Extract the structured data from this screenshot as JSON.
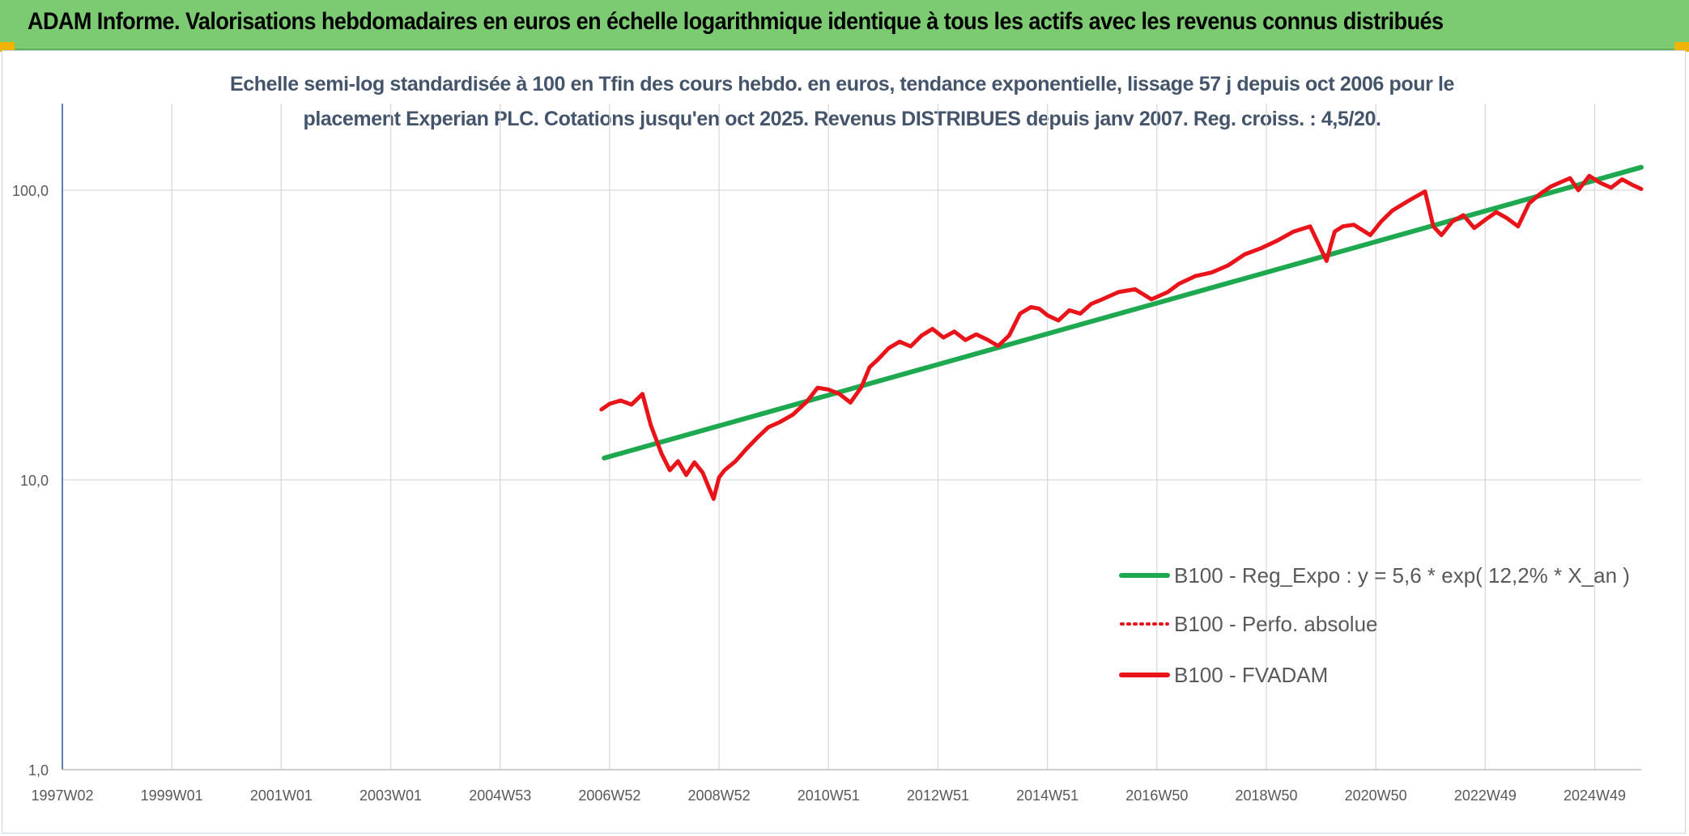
{
  "banner": {
    "title": "ADAM Informe. Valorisations hebdomadaires en euros en échelle logarithmique identique à tous les actifs avec les revenus connus distribués"
  },
  "colors": {
    "banner_bg": "#7ccb72",
    "regression": "#1ea84f",
    "fvadam": "#e8141a",
    "perfo": "#e8141a",
    "grid": "#d9d9d9",
    "axis": "#2f5597"
  },
  "chart_data": {
    "type": "line",
    "title_line1": "Echelle semi-log standardisée à 100 en Tfin des cours hebdo. en euros, tendance exponentielle, lissage 57 j depuis oct 2006 pour le",
    "title_line2": "placement Experian PLC. Cotations jusqu'en oct 2025. Revenus DISTRIBUES depuis janv 2007. Reg. croiss. : 4,5/20.",
    "y_scale": "log",
    "ylim": [
      1,
      200
    ],
    "xlim": [
      1997.0,
      2025.85
    ],
    "y_ticks": [
      {
        "value": 1,
        "label": "1,0"
      },
      {
        "value": 10,
        "label": "10,0"
      },
      {
        "value": 100,
        "label": "100,0"
      }
    ],
    "x_ticks": [
      {
        "value": 1997.0,
        "label": "1997W02"
      },
      {
        "value": 1999.0,
        "label": "1999W01"
      },
      {
        "value": 2001.0,
        "label": "2001W01"
      },
      {
        "value": 2003.0,
        "label": "2003W01"
      },
      {
        "value": 2005.0,
        "label": "2004W53"
      },
      {
        "value": 2007.0,
        "label": "2006W52"
      },
      {
        "value": 2009.0,
        "label": "2008W52"
      },
      {
        "value": 2011.0,
        "label": "2010W51"
      },
      {
        "value": 2013.0,
        "label": "2012W51"
      },
      {
        "value": 2015.0,
        "label": "2014W51"
      },
      {
        "value": 2017.0,
        "label": "2016W50"
      },
      {
        "value": 2019.0,
        "label": "2018W50"
      },
      {
        "value": 2021.0,
        "label": "2020W50"
      },
      {
        "value": 2023.0,
        "label": "2022W49"
      },
      {
        "value": 2025.0,
        "label": "2024W49"
      }
    ],
    "grid": true,
    "legend_position": "bottom-right",
    "series": [
      {
        "name": "B100 - Reg_Expo : y = 5,6 * exp( 12,2% *  X_an )",
        "style": "solid",
        "color": "#1ea84f",
        "x": [
          2006.9,
          2025.85
        ],
        "y": [
          11.9,
          120
        ]
      },
      {
        "name": "B100 - Perfo. absolue",
        "style": "dotted",
        "color": "#e8141a",
        "x": [],
        "y": []
      },
      {
        "name": "B100 - FVADAM",
        "style": "solid",
        "color": "#e8141a",
        "x": [
          2006.85,
          2007.0,
          2007.2,
          2007.4,
          2007.6,
          2007.75,
          2007.95,
          2008.1,
          2008.25,
          2008.4,
          2008.55,
          2008.7,
          2008.9,
          2009.0,
          2009.1,
          2009.3,
          2009.5,
          2009.7,
          2009.9,
          2010.1,
          2010.35,
          2010.6,
          2010.8,
          2011.0,
          2011.2,
          2011.4,
          2011.6,
          2011.75,
          2011.9,
          2012.1,
          2012.3,
          2012.5,
          2012.7,
          2012.9,
          2013.1,
          2013.3,
          2013.5,
          2013.7,
          2013.9,
          2014.1,
          2014.3,
          2014.5,
          2014.7,
          2014.85,
          2015.0,
          2015.2,
          2015.4,
          2015.6,
          2015.8,
          2016.0,
          2016.3,
          2016.6,
          2016.9,
          2017.2,
          2017.4,
          2017.7,
          2018.0,
          2018.3,
          2018.6,
          2018.9,
          2019.2,
          2019.5,
          2019.8,
          2020.1,
          2020.18,
          2020.25,
          2020.4,
          2020.6,
          2020.9,
          2021.1,
          2021.3,
          2021.6,
          2021.9,
          2022.05,
          2022.2,
          2022.4,
          2022.6,
          2022.8,
          2023.0,
          2023.2,
          2023.4,
          2023.6,
          2023.8,
          2024.0,
          2024.2,
          2024.4,
          2024.55,
          2024.7,
          2024.9,
          2025.1,
          2025.3,
          2025.5,
          2025.7,
          2025.85
        ],
        "y": [
          17.5,
          18.3,
          18.8,
          18.2,
          19.8,
          15.5,
          12.3,
          10.8,
          11.6,
          10.4,
          11.5,
          10.6,
          8.6,
          10.2,
          10.8,
          11.6,
          12.8,
          14.0,
          15.2,
          15.8,
          16.8,
          18.6,
          20.8,
          20.5,
          19.8,
          18.5,
          20.9,
          24.5,
          26.0,
          28.5,
          30.0,
          28.9,
          31.5,
          33.2,
          31.0,
          32.5,
          30.4,
          31.8,
          30.5,
          29.0,
          31.5,
          37.5,
          39.5,
          39.0,
          37.0,
          35.5,
          38.5,
          37.5,
          40.5,
          42.0,
          44.5,
          45.5,
          42.0,
          44.5,
          47.5,
          50.5,
          52.0,
          55.0,
          60.0,
          63.0,
          67.0,
          72.0,
          75.0,
          57.0,
          65.0,
          72.0,
          75.0,
          76.0,
          70.0,
          78.0,
          85.0,
          92.0,
          99.0,
          75.0,
          70.0,
          78.0,
          82.0,
          74.0,
          79.0,
          84.0,
          80.0,
          75.0,
          90.0,
          97.0,
          103.0,
          107.0,
          110.0,
          100.0,
          112.0,
          106.0,
          102.0,
          109.0,
          104.0,
          101.0
        ]
      }
    ]
  }
}
